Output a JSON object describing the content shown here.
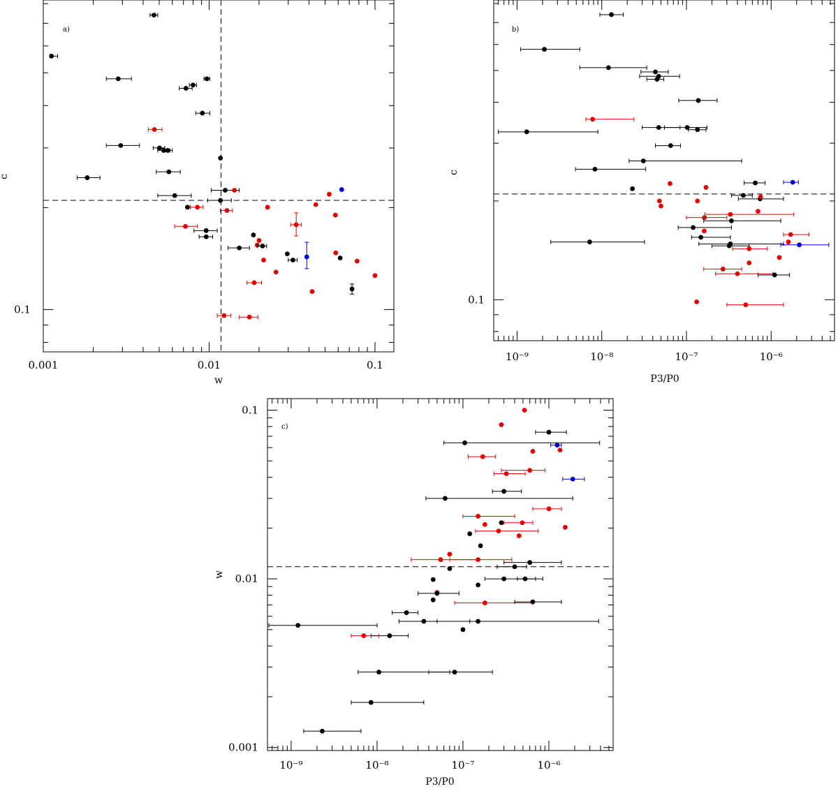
{
  "colors": {
    "black": "#000000",
    "red": "#e60000",
    "blue": "#0000dd"
  },
  "chart_data": [
    {
      "type": "scatter",
      "panel": "a)",
      "xlabel": "w",
      "ylabel": "c",
      "xscale": "log",
      "yscale": "log",
      "xlim": [
        0.001,
        0.13
      ],
      "ylim": [
        0.075,
        0.82
      ],
      "xticklabels": [
        {
          "v": 0.001,
          "t": "0.001"
        },
        {
          "v": 0.01,
          "t": "0.01"
        },
        {
          "v": 0.1,
          "t": "0.1"
        }
      ],
      "yticklabels": [
        {
          "v": 0.1,
          "t": "0.1"
        }
      ],
      "refx": 0.0118,
      "refy": 0.21,
      "points": [
        {
          "x": 0.00112,
          "y": 0.56,
          "c": "black",
          "xl": 0.0011,
          "xh": 0.00122
        },
        {
          "x": 0.00465,
          "y": 0.74,
          "c": "black",
          "xl": 0.0044,
          "xh": 0.0049
        },
        {
          "x": 0.00283,
          "y": 0.48,
          "c": "black",
          "xl": 0.0024,
          "xh": 0.0034
        },
        {
          "x": 0.00725,
          "y": 0.45,
          "c": "black",
          "xl": 0.0066,
          "xh": 0.0079
        },
        {
          "x": 0.008,
          "y": 0.46,
          "c": "black",
          "xl": 0.0076,
          "xh": 0.0084
        },
        {
          "x": 0.0097,
          "y": 0.48,
          "c": "black",
          "xl": 0.0093,
          "xh": 0.0101
        },
        {
          "x": 0.0091,
          "y": 0.38,
          "c": "black",
          "xl": 0.0083,
          "xh": 0.0101
        },
        {
          "x": 0.00468,
          "y": 0.34,
          "c": "red",
          "xl": 0.0043,
          "xh": 0.0052
        },
        {
          "x": 0.00293,
          "y": 0.305,
          "c": "black",
          "xl": 0.0024,
          "xh": 0.0038
        },
        {
          "x": 0.00502,
          "y": 0.3,
          "c": "black",
          "xl": 0.0046,
          "xh": 0.0054
        },
        {
          "x": 0.00533,
          "y": 0.295,
          "c": "black",
          "xl": 0.0049,
          "xh": 0.0058
        },
        {
          "x": 0.00563,
          "y": 0.295,
          "c": "black",
          "xl": 0.0052,
          "xh": 0.006
        },
        {
          "x": 0.0117,
          "y": 0.28,
          "c": "black"
        },
        {
          "x": 0.00572,
          "y": 0.255,
          "c": "black",
          "xl": 0.0048,
          "xh": 0.0067
        },
        {
          "x": 0.00184,
          "y": 0.245,
          "c": "black",
          "xl": 0.0016,
          "xh": 0.0022
        },
        {
          "x": 0.0125,
          "y": 0.225,
          "c": "black",
          "xl": 0.0103,
          "xh": 0.0152
        },
        {
          "x": 0.0142,
          "y": 0.225,
          "c": "red"
        },
        {
          "x": 0.0062,
          "y": 0.217,
          "c": "black",
          "xl": 0.0049,
          "xh": 0.0078
        },
        {
          "x": 0.063,
          "y": 0.226,
          "c": "blue"
        },
        {
          "x": 0.053,
          "y": 0.219,
          "c": "red"
        },
        {
          "x": 0.0117,
          "y": 0.21,
          "c": "black",
          "xl": 0.0098,
          "xh": 0.0136
        },
        {
          "x": 0.0074,
          "y": 0.2005,
          "c": "black"
        },
        {
          "x": 0.0085,
          "y": 0.2005,
          "c": "red",
          "xl": 0.0077,
          "xh": 0.0092
        },
        {
          "x": 0.0225,
          "y": 0.2005,
          "c": "red"
        },
        {
          "x": 0.044,
          "y": 0.204,
          "c": "red"
        },
        {
          "x": 0.0128,
          "y": 0.196,
          "c": "red",
          "xl": 0.0117,
          "xh": 0.0138
        },
        {
          "x": 0.0577,
          "y": 0.19,
          "c": "red"
        },
        {
          "x": 0.0072,
          "y": 0.176,
          "c": "red",
          "xl": 0.0062,
          "xh": 0.0085
        },
        {
          "x": 0.0335,
          "y": 0.178,
          "c": "red",
          "xl": 0.031,
          "xh": 0.036,
          "yl": 0.165,
          "yh": 0.193
        },
        {
          "x": 0.0096,
          "y": 0.171,
          "c": "black",
          "xl": 0.0081,
          "xh": 0.0112
        },
        {
          "x": 0.0096,
          "y": 0.164,
          "c": "black",
          "xl": 0.0087,
          "xh": 0.0105
        },
        {
          "x": 0.0185,
          "y": 0.166,
          "c": "black"
        },
        {
          "x": 0.02,
          "y": 0.16,
          "c": "red"
        },
        {
          "x": 0.0195,
          "y": 0.155,
          "c": "red"
        },
        {
          "x": 0.021,
          "y": 0.154,
          "c": "black",
          "xl": 0.0195,
          "xh": 0.0222
        },
        {
          "x": 0.0152,
          "y": 0.152,
          "c": "black",
          "xl": 0.013,
          "xh": 0.0175
        },
        {
          "x": 0.0296,
          "y": 0.146,
          "c": "black"
        },
        {
          "x": 0.032,
          "y": 0.14,
          "c": "black",
          "xl": 0.03,
          "xh": 0.034
        },
        {
          "x": 0.0388,
          "y": 0.143,
          "c": "blue",
          "yl": 0.132,
          "yh": 0.158
        },
        {
          "x": 0.058,
          "y": 0.147,
          "c": "red"
        },
        {
          "x": 0.0617,
          "y": 0.142,
          "c": "black"
        },
        {
          "x": 0.078,
          "y": 0.139,
          "c": "red"
        },
        {
          "x": 0.0213,
          "y": 0.14,
          "c": "red"
        },
        {
          "x": 0.0253,
          "y": 0.129,
          "c": "red"
        },
        {
          "x": 0.1,
          "y": 0.126,
          "c": "red"
        },
        {
          "x": 0.0187,
          "y": 0.12,
          "c": "red",
          "xl": 0.0169,
          "xh": 0.0207
        },
        {
          "x": 0.0418,
          "y": 0.113,
          "c": "red"
        },
        {
          "x": 0.0727,
          "y": 0.115,
          "c": "black",
          "yl": 0.111,
          "yh": 0.119
        },
        {
          "x": 0.0123,
          "y": 0.096,
          "c": "red",
          "xl": 0.0112,
          "xh": 0.0135
        },
        {
          "x": 0.0175,
          "y": 0.095,
          "c": "red",
          "xl": 0.0152,
          "xh": 0.0197
        }
      ]
    },
    {
      "type": "scatter",
      "panel": "b)",
      "xlabel": "P3/P0",
      "ylabel": "c",
      "xscale": "log",
      "yscale": "log",
      "xlim": [
        5.3e-10,
        5.6e-06
      ],
      "ylim": [
        0.075,
        0.82
      ],
      "xticklabels": [
        {
          "v": 1e-09,
          "t": "10⁻⁹"
        },
        {
          "v": 1e-08,
          "t": "10⁻⁸"
        },
        {
          "v": 1e-07,
          "t": "10⁻⁷"
        },
        {
          "v": 1e-06,
          "t": "10⁻⁶"
        }
      ],
      "yticklabels": [
        {
          "v": 0.1,
          "t": "0.1"
        }
      ],
      "refy": 0.21,
      "points": [
        {
          "x": 1.3e-08,
          "y": 0.74,
          "c": "black",
          "xl": 9.5e-09,
          "xh": 1.8e-08
        },
        {
          "x": 2.1e-09,
          "y": 0.58,
          "c": "black",
          "xl": 1.1e-09,
          "xh": 5.5e-09
        },
        {
          "x": 1.2e-08,
          "y": 0.51,
          "c": "black",
          "xl": 5.5e-09,
          "xh": 3.4e-08
        },
        {
          "x": 4.3e-08,
          "y": 0.495,
          "c": "black",
          "xl": 2.9e-08,
          "xh": 6.1e-08
        },
        {
          "x": 4.7e-08,
          "y": 0.48,
          "c": "black",
          "xl": 2.8e-08,
          "xh": 8.3e-08
        },
        {
          "x": 4.5e-08,
          "y": 0.47,
          "c": "black",
          "xl": 3.4e-08,
          "xh": 5.4e-08
        },
        {
          "x": 1.38e-07,
          "y": 0.405,
          "c": "black",
          "xl": 8.1e-08,
          "xh": 2.3e-07
        },
        {
          "x": 7.8e-09,
          "y": 0.355,
          "c": "red",
          "xl": 6.5e-09,
          "xh": 2.4e-08
        },
        {
          "x": 4.7e-08,
          "y": 0.335,
          "c": "black",
          "xl": 3e-08,
          "xh": 8.4e-08
        },
        {
          "x": 1.02e-07,
          "y": 0.335,
          "c": "black",
          "xl": 5.5e-08,
          "xh": 1.75e-07
        },
        {
          "x": 1.35e-07,
          "y": 0.33,
          "c": "black",
          "xl": 1.05e-07,
          "xh": 1.7e-07
        },
        {
          "x": 1.3e-09,
          "y": 0.325,
          "c": "black",
          "xl": 6e-10,
          "xh": 9e-09
        },
        {
          "x": 6.5e-08,
          "y": 0.295,
          "c": "black",
          "xl": 4.3e-08,
          "xh": 8.5e-08
        },
        {
          "x": 3.1e-08,
          "y": 0.265,
          "c": "black",
          "xl": 2.1e-08,
          "xh": 4.5e-07
        },
        {
          "x": 8.3e-09,
          "y": 0.25,
          "c": "black",
          "xl": 4.9e-09,
          "xh": 3.3e-08
        },
        {
          "x": 6.4e-08,
          "y": 0.226,
          "c": "red"
        },
        {
          "x": 1.7e-07,
          "y": 0.22,
          "c": "red"
        },
        {
          "x": 2.3e-08,
          "y": 0.218,
          "c": "black"
        },
        {
          "x": 6.5e-07,
          "y": 0.227,
          "c": "black",
          "xl": 4.8e-07,
          "xh": 8.5e-07
        },
        {
          "x": 1.8e-06,
          "y": 0.228,
          "c": "blue",
          "xl": 1.4e-06,
          "xh": 2.1e-06
        },
        {
          "x": 4.7e-07,
          "y": 0.208,
          "c": "black",
          "xl": 3.4e-07,
          "xh": 6e-07
        },
        {
          "x": 7.4e-07,
          "y": 0.203,
          "c": "black",
          "xl": 4.1e-07,
          "xh": 1.4e-06
        },
        {
          "x": 7.5e-07,
          "y": 0.206,
          "c": "red"
        },
        {
          "x": 4.8e-08,
          "y": 0.2,
          "c": "red"
        },
        {
          "x": 1.35e-07,
          "y": 0.2,
          "c": "red"
        },
        {
          "x": 5e-08,
          "y": 0.193,
          "c": "red"
        },
        {
          "x": 7e-07,
          "y": 0.186,
          "c": "red"
        },
        {
          "x": 3.3e-07,
          "y": 0.182,
          "c": "red",
          "xl": 1.65e-07,
          "xh": 1.85e-06
        },
        {
          "x": 1.63e-07,
          "y": 0.178,
          "c": "red",
          "xl": 1e-07,
          "xh": 3e-07
        },
        {
          "x": 3.4e-07,
          "y": 0.174,
          "c": "black",
          "xl": 1.6e-07,
          "xh": 1.3e-06
        },
        {
          "x": 1.2e-07,
          "y": 0.166,
          "c": "black",
          "xl": 8e-08,
          "xh": 3.4e-07
        },
        {
          "x": 1.62e-07,
          "y": 0.162,
          "c": "red"
        },
        {
          "x": 1.48e-07,
          "y": 0.155,
          "c": "black",
          "xl": 1.15e-07,
          "xh": 3.3e-07
        },
        {
          "x": 3.3e-07,
          "y": 0.148,
          "c": "black",
          "xl": 1.4e-07,
          "xh": 1.4e-06
        },
        {
          "x": 1.7e-06,
          "y": 0.158,
          "c": "red",
          "xl": 1.4e-06,
          "xh": 2.8e-06
        },
        {
          "x": 1.6e-06,
          "y": 0.15,
          "c": "red"
        },
        {
          "x": 7.2e-09,
          "y": 0.15,
          "c": "black",
          "xl": 2.5e-09,
          "xh": 3.2e-08
        },
        {
          "x": 2.15e-06,
          "y": 0.147,
          "c": "blue",
          "xl": 1.3e-06,
          "xh": 4.8e-06
        },
        {
          "x": 3.2e-07,
          "y": 0.146,
          "c": "black",
          "xl": 2e-07,
          "xh": 5.5e-07
        },
        {
          "x": 5.5e-07,
          "y": 0.143,
          "c": "red",
          "xl": 3.5e-07,
          "xh": 9e-07
        },
        {
          "x": 1.25e-06,
          "y": 0.1345,
          "c": "red"
        },
        {
          "x": 5.5e-07,
          "y": 0.1295,
          "c": "red"
        },
        {
          "x": 2.7e-07,
          "y": 0.124,
          "c": "red",
          "xl": 1.6e-07,
          "xh": 4.5e-07
        },
        {
          "x": 4e-07,
          "y": 0.12,
          "c": "red",
          "xl": 2.2e-07,
          "xh": 1.05e-06
        },
        {
          "x": 1.1e-06,
          "y": 0.119,
          "c": "black",
          "xl": 7e-07,
          "xh": 1.65e-06
        },
        {
          "x": 1.32e-07,
          "y": 0.0985,
          "c": "red"
        },
        {
          "x": 5e-07,
          "y": 0.0965,
          "c": "red",
          "xl": 3e-07,
          "xh": 1.4e-06
        }
      ]
    },
    {
      "type": "scatter",
      "panel": "c)",
      "xlabel": "P3/P0",
      "ylabel": "w",
      "xscale": "log",
      "yscale": "log",
      "xlim": [
        5.3e-10,
        5.6e-06
      ],
      "ylim": [
        0.00096,
        0.117
      ],
      "xticklabels": [
        {
          "v": 1e-09,
          "t": "10⁻⁹"
        },
        {
          "v": 1e-08,
          "t": "10⁻⁸"
        },
        {
          "v": 1e-07,
          "t": "10⁻⁷"
        },
        {
          "v": 1e-06,
          "t": "10⁻⁶"
        }
      ],
      "yticklabels": [
        {
          "v": 0.001,
          "t": "0.001"
        },
        {
          "v": 0.01,
          "t": "0.01"
        },
        {
          "v": 0.1,
          "t": "0.1"
        }
      ],
      "refy": 0.0118,
      "points": [
        {
          "x": 5.2e-07,
          "y": 0.1,
          "c": "red"
        },
        {
          "x": 2.8e-07,
          "y": 0.082,
          "c": "red"
        },
        {
          "x": 1e-06,
          "y": 0.074,
          "c": "black",
          "xl": 7e-07,
          "xh": 1.6e-06
        },
        {
          "x": 1.05e-07,
          "y": 0.064,
          "c": "black",
          "xl": 6e-08,
          "xh": 3.9e-06
        },
        {
          "x": 1.25e-06,
          "y": 0.062,
          "c": "blue",
          "xl": 1.05e-06,
          "xh": 1.4e-06
        },
        {
          "x": 1.35e-06,
          "y": 0.058,
          "c": "red"
        },
        {
          "x": 6.5e-07,
          "y": 0.057,
          "c": "red"
        },
        {
          "x": 1.7e-07,
          "y": 0.053,
          "c": "red",
          "xl": 1.15e-07,
          "xh": 2.4e-07
        },
        {
          "x": 6e-07,
          "y": 0.044,
          "c": "red",
          "xl": 2.8e-07,
          "xh": 9e-07
        },
        {
          "x": 3.2e-07,
          "y": 0.042,
          "c": "red",
          "xl": 2.3e-07,
          "xh": 5.3e-07
        },
        {
          "x": 1.9e-06,
          "y": 0.039,
          "c": "blue",
          "xl": 1.45e-06,
          "xh": 2.6e-06
        },
        {
          "x": 3e-07,
          "y": 0.033,
          "c": "black",
          "xl": 2.2e-07,
          "xh": 4.8e-07
        },
        {
          "x": 6.2e-08,
          "y": 0.03,
          "c": "black",
          "xl": 3.7e-08,
          "xh": 1.9e-06
        },
        {
          "x": 1e-06,
          "y": 0.026,
          "c": "red",
          "xl": 6.5e-07,
          "xh": 1.4e-06
        },
        {
          "x": 1.5e-07,
          "y": 0.0235,
          "c": "red",
          "xl": 1e-07,
          "xh": 4e-07
        },
        {
          "x": 4.9e-07,
          "y": 0.0215,
          "c": "red",
          "xl": 3e-07,
          "xh": 6.5e-07
        },
        {
          "x": 1.8e-07,
          "y": 0.021,
          "c": "red"
        },
        {
          "x": 2.8e-07,
          "y": 0.0215,
          "c": "black"
        },
        {
          "x": 1.55e-06,
          "y": 0.0202,
          "c": "red"
        },
        {
          "x": 2.6e-07,
          "y": 0.0192,
          "c": "red",
          "xl": 1.4e-07,
          "xh": 7.5e-07
        },
        {
          "x": 1.2e-07,
          "y": 0.0185,
          "c": "black"
        },
        {
          "x": 4.5e-07,
          "y": 0.018,
          "c": "red"
        },
        {
          "x": 1.6e-07,
          "y": 0.0157,
          "c": "black"
        },
        {
          "x": 7e-08,
          "y": 0.014,
          "c": "red"
        },
        {
          "x": 5.5e-08,
          "y": 0.013,
          "c": "red",
          "xl": 2.5e-08,
          "xh": 1.5e-07
        },
        {
          "x": 1.5e-07,
          "y": 0.013,
          "c": "red",
          "xl": 7e-08,
          "xh": 3.7e-07
        },
        {
          "x": 6e-07,
          "y": 0.0125,
          "c": "black",
          "xl": 3e-07,
          "xh": 1.4e-06
        },
        {
          "x": 7e-08,
          "y": 0.0115,
          "c": "black"
        },
        {
          "x": 4e-07,
          "y": 0.0118,
          "c": "black",
          "xl": 2.5e-07,
          "xh": 5.5e-07
        },
        {
          "x": 4.5e-08,
          "y": 0.0099,
          "c": "black"
        },
        {
          "x": 3e-07,
          "y": 0.01,
          "c": "black",
          "xl": 1.8e-07,
          "xh": 8.5e-07
        },
        {
          "x": 5.3e-07,
          "y": 0.01,
          "c": "black",
          "xl": 4.3e-07,
          "xh": 7e-07
        },
        {
          "x": 1.5e-07,
          "y": 0.0092,
          "c": "black"
        },
        {
          "x": 5e-08,
          "y": 0.0083,
          "c": "red"
        },
        {
          "x": 5e-08,
          "y": 0.0082,
          "c": "black",
          "xl": 3e-08,
          "xh": 9e-08
        },
        {
          "x": 4.5e-08,
          "y": 0.0075,
          "c": "black"
        },
        {
          "x": 1.8e-07,
          "y": 0.0072,
          "c": "red",
          "xl": 8e-08,
          "xh": 6.5e-07
        },
        {
          "x": 6.5e-07,
          "y": 0.0073,
          "c": "black",
          "xl": 4e-07,
          "xh": 1.4e-06
        },
        {
          "x": 2.2e-08,
          "y": 0.0063,
          "c": "black",
          "xl": 1.5e-08,
          "xh": 3e-08
        },
        {
          "x": 3.5e-08,
          "y": 0.0056,
          "c": "black",
          "xl": 1.8e-08,
          "xh": 1.2e-07
        },
        {
          "x": 1.5e-07,
          "y": 0.0056,
          "c": "black",
          "xl": 5e-08,
          "xh": 3.8e-06
        },
        {
          "x": 1e-07,
          "y": 0.005,
          "c": "black"
        },
        {
          "x": 1.2e-09,
          "y": 0.0053,
          "c": "black",
          "xl": 5.5e-10,
          "xh": 1e-08
        },
        {
          "x": 7e-09,
          "y": 0.0046,
          "c": "red",
          "xl": 5e-09,
          "xh": 1.05e-08
        },
        {
          "x": 1.4e-08,
          "y": 0.0046,
          "c": "black",
          "xl": 8.5e-09,
          "xh": 2.3e-08
        },
        {
          "x": 8e-08,
          "y": 0.0028,
          "c": "black",
          "xl": 4e-08,
          "xh": 2.2e-07
        },
        {
          "x": 1.05e-08,
          "y": 0.0028,
          "c": "black",
          "xl": 6e-09,
          "xh": 7e-08
        },
        {
          "x": 8.5e-09,
          "y": 0.00185,
          "c": "black",
          "xl": 5e-09,
          "xh": 3.5e-08
        },
        {
          "x": 2.3e-09,
          "y": 0.00125,
          "c": "black",
          "xl": 1.4e-09,
          "xh": 6.5e-09
        }
      ]
    }
  ]
}
